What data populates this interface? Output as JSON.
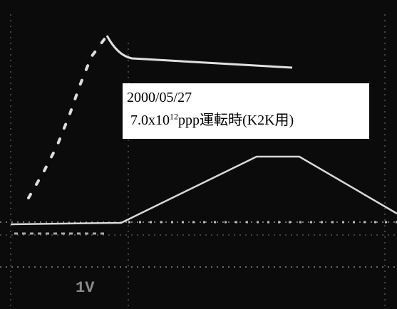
{
  "label": {
    "date": "2000/05/27",
    "intensity_mantissa": " 7.0x10",
    "intensity_exponent": "12",
    "intensity_unit": "ppp運転時(K2K用)"
  },
  "scale_label": "1V"
}
